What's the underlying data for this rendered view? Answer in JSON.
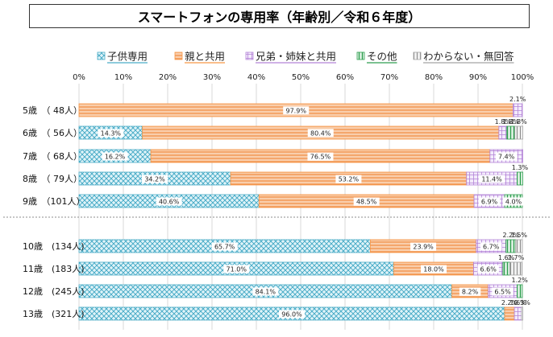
{
  "chart_data": {
    "type": "bar",
    "stacked": true,
    "orientation": "horizontal",
    "title": "スマートフォンの専用率（年齢別／令和６年度）",
    "categories": [
      "5歳　（ 48人）",
      "6歳　（ 56人）",
      "7歳　（ 68人）",
      "8歳　（ 79人）",
      "9歳　（101人）",
      "10歳　(134人)",
      "11歳　(183人)",
      "12歳　(245人)",
      "13歳　(321人)"
    ],
    "series": [
      {
        "name": "子供専用",
        "color": "#4bacc6",
        "values": [
          0,
          14.3,
          16.2,
          34.2,
          40.6,
          65.7,
          71.0,
          84.1,
          96.0
        ]
      },
      {
        "name": "親と共用",
        "color": "#f79646",
        "values": [
          97.9,
          80.4,
          76.5,
          53.2,
          48.5,
          23.9,
          18.0,
          8.2,
          2.2
        ]
      },
      {
        "name": "兄弟・姉妹と共用",
        "color": "#b484d8",
        "values": [
          2.1,
          1.8,
          7.4,
          11.4,
          6.9,
          6.7,
          6.6,
          6.5,
          1.6
        ]
      },
      {
        "name": "その他",
        "color": "#2e9e4f",
        "values": [
          0,
          1.8,
          0,
          1.3,
          4.0,
          2.2,
          1.6,
          1.2,
          0
        ]
      },
      {
        "name": "わからない・無回答",
        "color": "#a5a5a5",
        "values": [
          0,
          1.8,
          0,
          0,
          0,
          1.5,
          2.7,
          0,
          0.3
        ]
      }
    ],
    "labels": [
      [
        "",
        "14.3%",
        "16.2%",
        "34.2%",
        "40.6%",
        "65.7%",
        "71.0%",
        "84.1%",
        "96.0%"
      ],
      [
        "97.9%",
        "80.4%",
        "76.5%",
        "53.2%",
        "48.5%",
        "23.9%",
        "18.0%",
        "8.2%",
        "2.2%"
      ],
      [
        "2.1%",
        "1.8%",
        "7.4%",
        "11.4%",
        "6.9%",
        "6.7%",
        "6.6%",
        "6.5%",
        "1.6%"
      ],
      [
        "",
        "1.8%",
        "",
        "1.3%",
        "4.0%",
        "2.2%",
        "1.6%",
        "1.2%",
        ""
      ],
      [
        "",
        "1.8%",
        "",
        "",
        "",
        "1.5%",
        "2.7%",
        "",
        "0.3%"
      ]
    ],
    "xlim": [
      0,
      100
    ],
    "xticks": [
      "0%",
      "10%",
      "20%",
      "30%",
      "40%",
      "50%",
      "60%",
      "70%",
      "80%",
      "90%",
      "100%"
    ],
    "legend": "top",
    "grid": true
  }
}
